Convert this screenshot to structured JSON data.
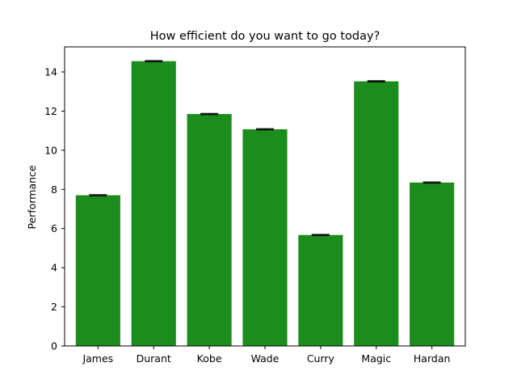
{
  "chart_data": {
    "type": "bar",
    "title": "How efficient do you want to go today?",
    "xlabel": "",
    "ylabel": "Performance",
    "categories": [
      "James",
      "Durant",
      "Kobe",
      "Wade",
      "Curry",
      "Magic",
      "Hardan"
    ],
    "values": [
      7.7,
      14.55,
      11.85,
      11.07,
      5.67,
      13.52,
      8.35
    ],
    "errors": [
      0.03,
      0.03,
      0.03,
      0.03,
      0.03,
      0.03,
      0.03
    ],
    "ylim": [
      0,
      15.28
    ],
    "yticks": [
      0,
      2,
      4,
      6,
      8,
      10,
      12,
      14
    ],
    "ytick_labels": [
      "0",
      "2",
      "4",
      "6",
      "8",
      "10",
      "12",
      "14"
    ],
    "bar_color": "#1c8c1c",
    "error_color": "#000000",
    "grid": false,
    "legend": "none"
  }
}
